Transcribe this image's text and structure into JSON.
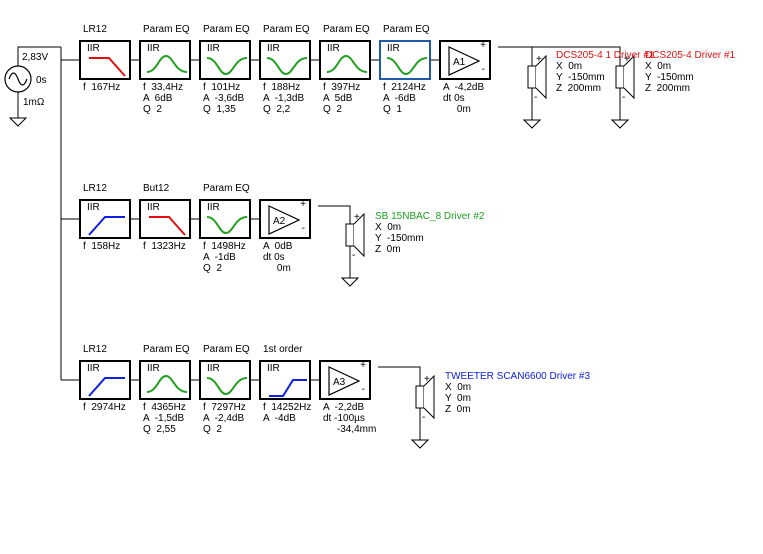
{
  "generator": {
    "voltage": "2,83V",
    "delay": "0s",
    "impedance": "1mΩ"
  },
  "chains": [
    {
      "blocks": [
        {
          "type": "LR12",
          "kind": "lowpass",
          "color": "#e01010",
          "params": [
            "f  167Hz"
          ]
        },
        {
          "type": "Param EQ",
          "kind": "peak",
          "color": "#20a020",
          "params": [
            "f  33,4Hz",
            "A  6dB",
            "Q  2"
          ]
        },
        {
          "type": "Param EQ",
          "kind": "dip",
          "color": "#20a020",
          "params": [
            "f  101Hz",
            "A  -3,6dB",
            "Q  1,35"
          ]
        },
        {
          "type": "Param EQ",
          "kind": "dip",
          "color": "#20a020",
          "params": [
            "f  188Hz",
            "A  -1,3dB",
            "Q  2,2"
          ]
        },
        {
          "type": "Param EQ",
          "kind": "peak",
          "color": "#20a020",
          "params": [
            "f  397Hz",
            "A  5dB",
            "Q  2"
          ]
        },
        {
          "type": "Param EQ",
          "kind": "dip",
          "color": "#20a020",
          "selected": true,
          "params": [
            "f  2124Hz",
            "A  -6dB",
            "Q  1"
          ]
        }
      ],
      "amp": {
        "name": "A1",
        "params": [
          "A  -4,2dB",
          "dt 0s",
          "     0m"
        ]
      },
      "drivers": [
        {
          "name": "DCS205-4 1 Driver #1",
          "color": "#e01010",
          "coords": [
            "X  0m",
            "Y  -150mm",
            "Z  200mm"
          ]
        },
        {
          "name": "DCS205-4 Driver #1",
          "color": "#e01010",
          "coords": [
            "X  0m",
            "Y  -150mm",
            "Z  200mm"
          ]
        }
      ]
    },
    {
      "blocks": [
        {
          "type": "LR12",
          "kind": "highpass",
          "color": "#1020e0",
          "params": [
            "f  158Hz"
          ]
        },
        {
          "type": "But12",
          "kind": "lowpass",
          "color": "#e01010",
          "params": [
            "f  1323Hz"
          ]
        },
        {
          "type": "Param EQ",
          "kind": "dip",
          "color": "#20a020",
          "params": [
            "f  1498Hz",
            "A  -1dB",
            "Q  2"
          ]
        }
      ],
      "amp": {
        "name": "A2",
        "params": [
          "A  0dB",
          "dt 0s",
          "     0m"
        ]
      },
      "drivers": [
        {
          "name": "SB 15NBAC_8 Driver #2",
          "color": "#20a020",
          "coords": [
            "X  0m",
            "Y  -150mm",
            "Z  0m"
          ]
        }
      ]
    },
    {
      "blocks": [
        {
          "type": "LR12",
          "kind": "highpass",
          "color": "#1020e0",
          "params": [
            "f  2974Hz"
          ]
        },
        {
          "type": "Param EQ",
          "kind": "peak",
          "color": "#20a020",
          "params": [
            "f  4365Hz",
            "A  -1,5dB",
            "Q  2,55"
          ]
        },
        {
          "type": "Param EQ",
          "kind": "dip",
          "color": "#20a020",
          "params": [
            "f  7297Hz",
            "A  -2,4dB",
            "Q  2"
          ]
        },
        {
          "type": "1st order",
          "kind": "highpass1",
          "color": "#1020e0",
          "params": [
            "f  14252Hz",
            "A  -4dB"
          ]
        }
      ],
      "amp": {
        "name": "A3",
        "params": [
          "A  -2,2dB",
          "dt -100µs",
          "     -34,4mm"
        ]
      },
      "drivers": [
        {
          "name": "TWEETER SCAN6600 Driver #3",
          "color": "#1020e0",
          "coords": [
            "X  0m",
            "Y  0m",
            "Z  0m"
          ]
        }
      ]
    }
  ],
  "labels": {
    "block_tag": "IIR",
    "plus": "+",
    "minus": "-"
  }
}
